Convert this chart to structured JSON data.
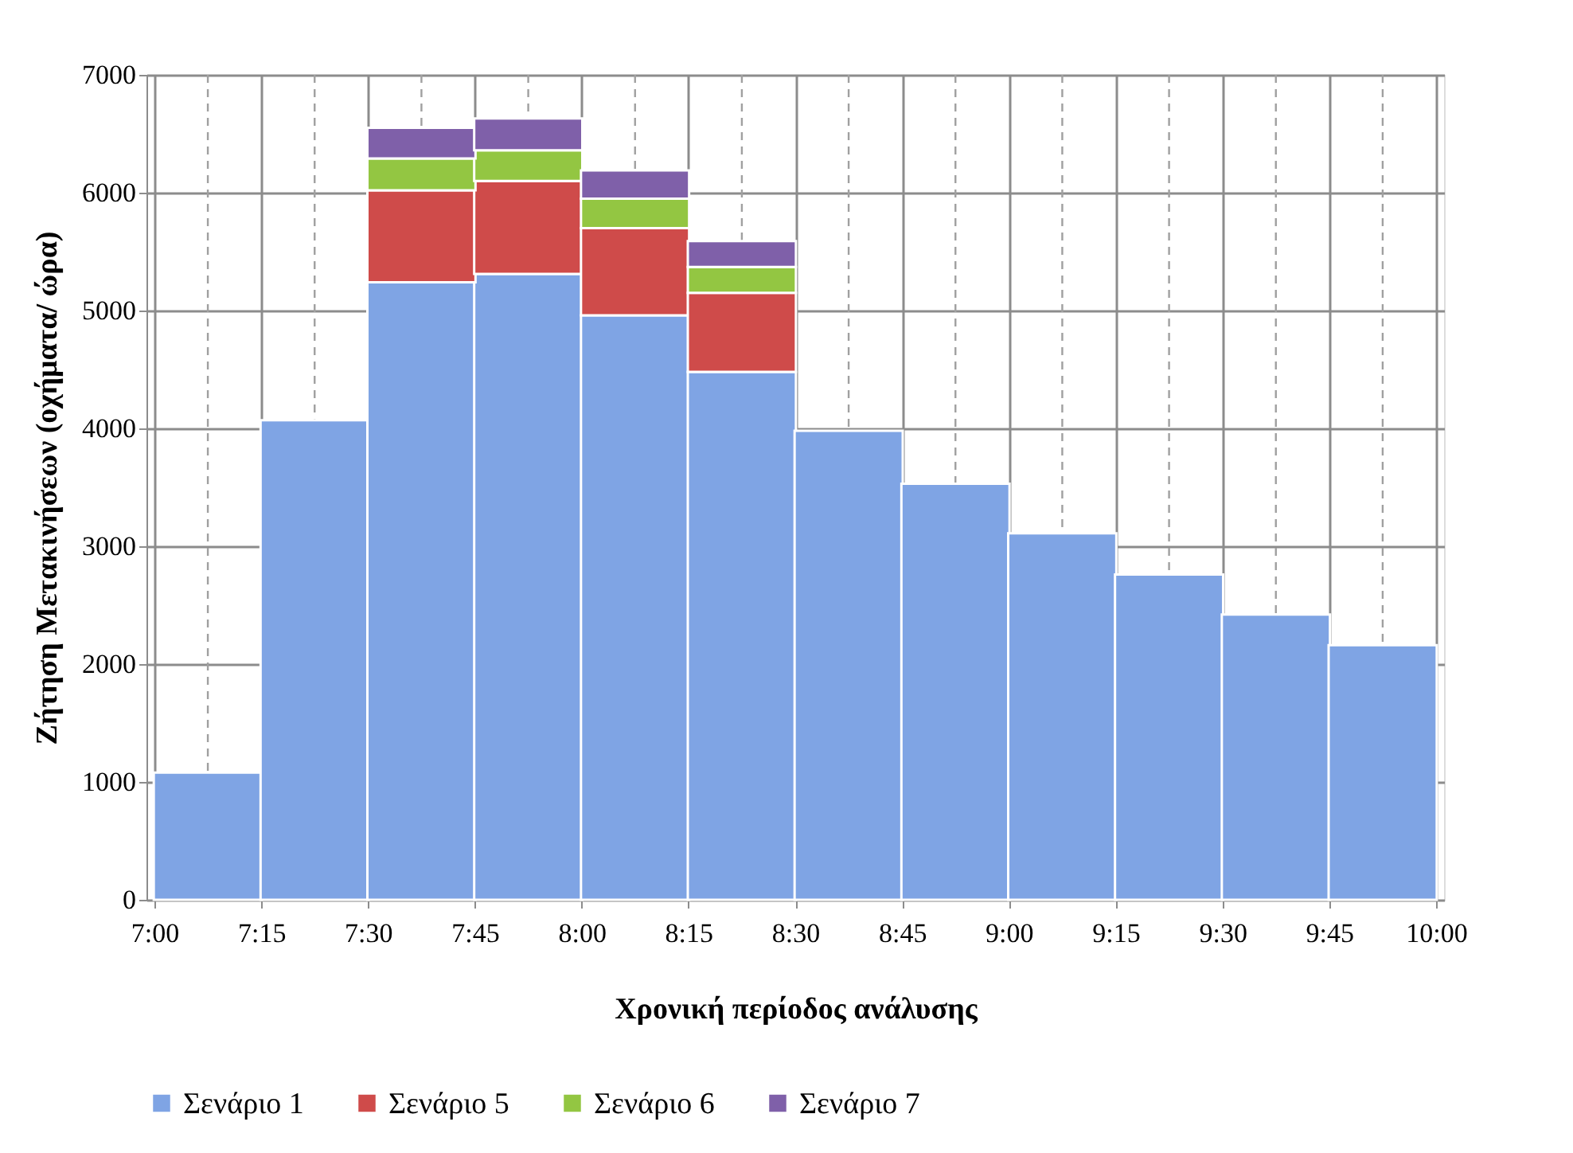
{
  "chart_data": {
    "type": "bar",
    "stacked": true,
    "xlabel": "Χρονική περίοδος ανάλυσης",
    "ylabel": "Ζήτηση Μετακινήσεων (οχήματα/ ώρα)",
    "x": [
      7.125,
      7.375,
      7.625,
      7.875,
      8.125,
      8.375,
      8.625,
      8.875,
      9.125,
      9.375,
      9.625,
      9.875
    ],
    "xlim": [
      7,
      10
    ],
    "xticks": [
      {
        "value": 7,
        "label": "7:00"
      },
      {
        "value": 7.25,
        "label": "7:15"
      },
      {
        "value": 7.5,
        "label": "7:30"
      },
      {
        "value": 7.75,
        "label": "7:45"
      },
      {
        "value": 8,
        "label": "8:00"
      },
      {
        "value": 8.25,
        "label": "8:15"
      },
      {
        "value": 8.5,
        "label": "8:30"
      },
      {
        "value": 8.75,
        "label": "8:45"
      },
      {
        "value": 9,
        "label": "9:00"
      },
      {
        "value": 9.25,
        "label": "9:15"
      },
      {
        "value": 9.5,
        "label": "9:30"
      },
      {
        "value": 9.75,
        "label": "9:45"
      },
      {
        "value": 10,
        "label": "10:00"
      }
    ],
    "ylim": [
      0,
      7000
    ],
    "yticks": [
      0,
      1000,
      2000,
      3000,
      4000,
      5000,
      6000,
      7000
    ],
    "grid": true,
    "legend": "bottom",
    "series": [
      {
        "name": "Σενάριο 1",
        "color": "#7fa4e4",
        "values": [
          1080,
          4070,
          5240,
          5310,
          4960,
          4480,
          3980,
          3530,
          3110,
          2760,
          2420,
          2160
        ]
      },
      {
        "name": "Σενάριο 5",
        "color": "#cf4b4a",
        "values": [
          null,
          null,
          780,
          790,
          740,
          670,
          null,
          null,
          null,
          null,
          null,
          null
        ]
      },
      {
        "name": "Σενάριο 6",
        "color": "#93c642",
        "values": [
          null,
          null,
          270,
          260,
          250,
          220,
          null,
          null,
          null,
          null,
          null,
          null
        ]
      },
      {
        "name": "Σενάριο 7",
        "color": "#7f60a9",
        "values": [
          null,
          null,
          260,
          270,
          240,
          220,
          null,
          null,
          null,
          null,
          null,
          null
        ]
      }
    ]
  }
}
